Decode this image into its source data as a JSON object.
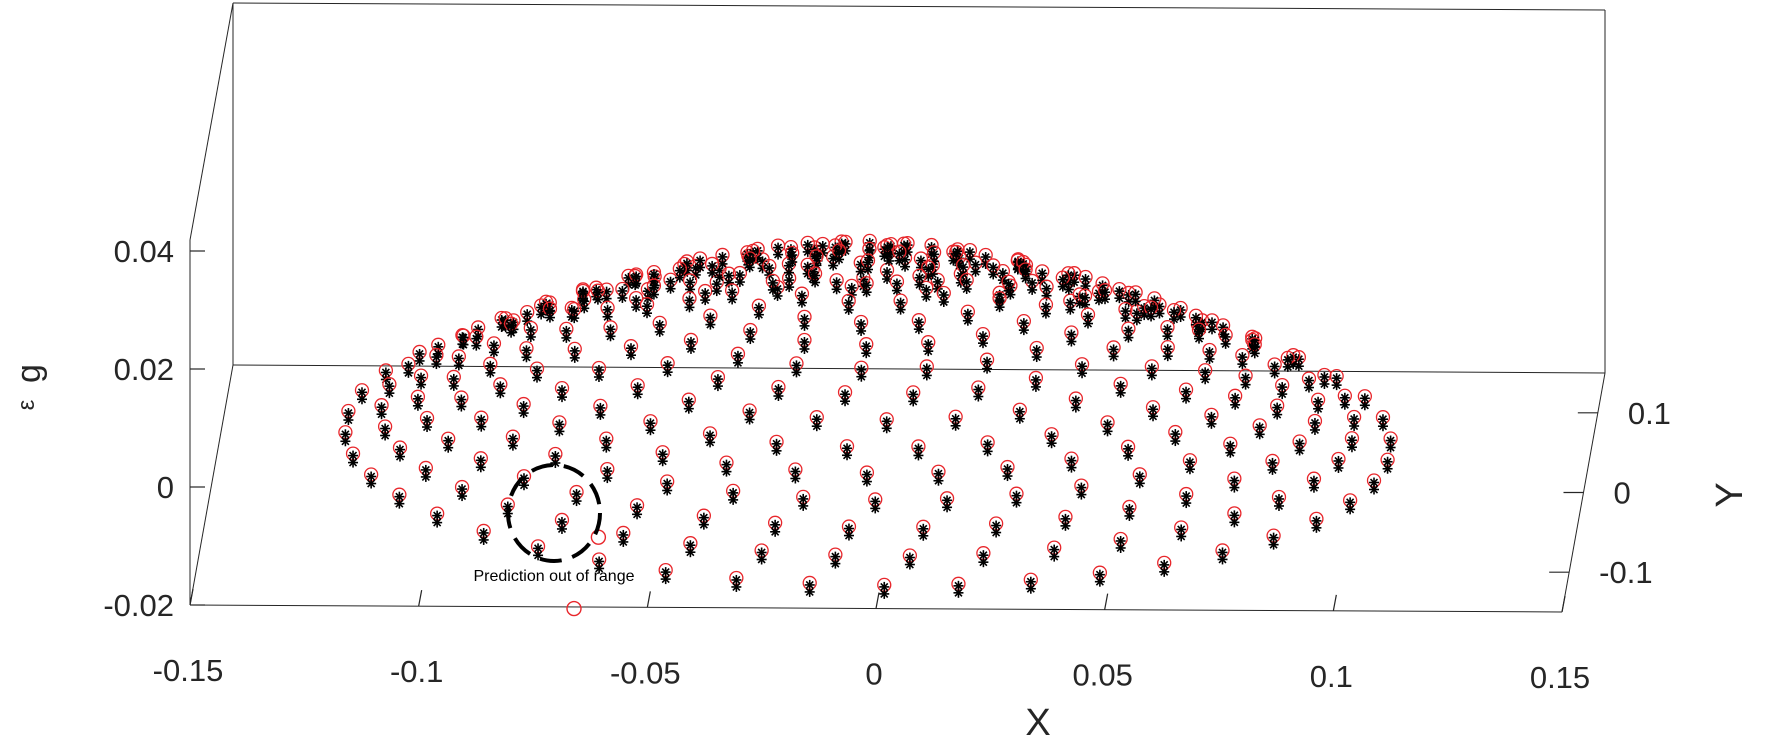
{
  "chart_data": {
    "type": "scatter",
    "projection": "3d",
    "title": "",
    "xlabel": "X",
    "ylabel": "Y",
    "zlabel": "ε",
    "zlabel_subscript": "g",
    "xlim": [
      -0.15,
      0.15
    ],
    "ylim": [
      -0.15,
      0.15
    ],
    "zlim": [
      -0.02,
      0.06
    ],
    "x_ticks": [
      -0.15,
      -0.1,
      -0.05,
      0,
      0.05,
      0.1,
      0.15
    ],
    "x_tick_labels": [
      "-0.15",
      "-0.1",
      "-0.05",
      "0",
      "0.05",
      "0.1",
      "0.15"
    ],
    "y_ticks": [
      -0.1,
      0,
      0.1
    ],
    "y_tick_labels": [
      "-0.1",
      "0",
      "0.1"
    ],
    "z_ticks": [
      -0.02,
      0,
      0.02,
      0.04
    ],
    "z_tick_labels": [
      "-0.02",
      "0",
      "0.02",
      "0.04"
    ],
    "grid": false,
    "legend": "none",
    "series": [
      {
        "marker": "circle",
        "color": "#e8262b",
        "role": "prediction"
      },
      {
        "marker": "asterisk",
        "color": "#000000",
        "role": "measurement"
      }
    ],
    "surface_model": {
      "shape": "dome",
      "peak_z": 0.045,
      "rim_z": 0.012,
      "rim_radius": 0.13,
      "rings": [
        0.13,
        0.121,
        0.112,
        0.103,
        0.094,
        0.085,
        0.075,
        0.065,
        0.055,
        0.045,
        0.035,
        0.025,
        0.015
      ],
      "spokes": 40
    },
    "outliers": [
      {
        "x": -0.068,
        "y": -0.03,
        "z": -0.001
      },
      {
        "x": -0.075,
        "y": -0.06,
        "z": -0.008
      }
    ],
    "annotations": [
      {
        "text": "Prediction out of range"
      }
    ]
  }
}
